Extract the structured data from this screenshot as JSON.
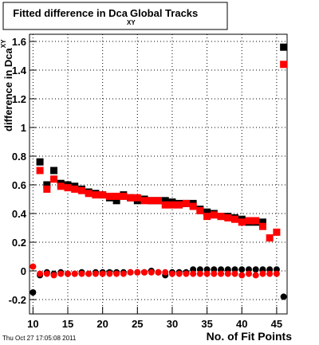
{
  "chart_data": {
    "type": "scatter",
    "title": "Fitted difference in Dca",
    "title_subscript": "XY",
    "title_suffix": "Global Tracks",
    "y_label": "difference in Dca",
    "y_label_subscript": "XY",
    "x_label": "No. of Fit Points",
    "timestamp": "Thu Oct 27 17:05:08 2011",
    "x": [
      10,
      11,
      12,
      13,
      14,
      15,
      16,
      17,
      18,
      19,
      20,
      21,
      22,
      23,
      24,
      25,
      26,
      27,
      28,
      29,
      30,
      31,
      32,
      33,
      34,
      35,
      36,
      37,
      38,
      39,
      40,
      41,
      42,
      43,
      44,
      45,
      46
    ],
    "series": [
      {
        "color": "#000000",
        "marker": "square",
        "values": [
          null,
          0.76,
          0.6,
          0.7,
          0.61,
          0.6,
          0.59,
          0.57,
          0.55,
          0.54,
          0.53,
          0.51,
          0.49,
          0.53,
          0.51,
          0.49,
          0.5,
          0.49,
          0.49,
          0.49,
          0.48,
          0.47,
          0.47,
          0.47,
          0.43,
          0.41,
          0.4,
          0.38,
          0.38,
          0.37,
          0.36,
          0.34,
          0.34,
          0.34,
          null,
          null,
          1.56
        ]
      },
      {
        "color": "#ff0000",
        "marker": "square",
        "values": [
          null,
          0.7,
          0.57,
          0.64,
          0.59,
          0.58,
          0.57,
          0.56,
          0.54,
          0.53,
          0.53,
          0.52,
          0.52,
          0.52,
          0.51,
          0.51,
          0.49,
          0.49,
          0.49,
          0.46,
          0.46,
          0.46,
          0.47,
          0.45,
          0.42,
          0.38,
          0.39,
          0.38,
          0.37,
          0.36,
          0.34,
          0.35,
          0.35,
          0.31,
          0.23,
          0.27,
          1.44
        ]
      },
      {
        "color": "#000000",
        "marker": "circle",
        "values": [
          -0.15,
          -0.03,
          -0.01,
          -0.02,
          -0.01,
          -0.02,
          -0.02,
          -0.01,
          -0.02,
          -0.01,
          -0.01,
          -0.01,
          -0.01,
          -0.01,
          -0.01,
          -0.01,
          -0.01,
          0.0,
          -0.01,
          -0.03,
          -0.01,
          -0.01,
          -0.01,
          0.01,
          0.01,
          0.01,
          0.01,
          0.01,
          0.01,
          0.01,
          0.01,
          0.01,
          0.01,
          0.01,
          0.01,
          0.01,
          -0.18
        ]
      },
      {
        "color": "#ff0000",
        "marker": "circle",
        "values": [
          0.03,
          -0.02,
          -0.02,
          -0.03,
          -0.02,
          -0.02,
          -0.02,
          -0.02,
          -0.02,
          -0.02,
          -0.02,
          -0.02,
          -0.02,
          -0.02,
          -0.01,
          -0.01,
          -0.01,
          -0.01,
          -0.01,
          -0.01,
          -0.02,
          -0.02,
          -0.02,
          -0.02,
          -0.02,
          -0.02,
          -0.02,
          -0.02,
          -0.02,
          -0.02,
          -0.03,
          -0.02,
          -0.03,
          -0.02,
          -0.02,
          -0.02,
          null
        ]
      }
    ],
    "xlim": [
      9.5,
      46.5
    ],
    "ylim": [
      -0.3,
      1.65
    ],
    "xticks": [
      10,
      15,
      20,
      25,
      30,
      35,
      40,
      45
    ],
    "yticks": [
      -0.2,
      0,
      0.2,
      0.4,
      0.6,
      0.8,
      1,
      1.2,
      1.4,
      1.6
    ],
    "grid": true
  }
}
